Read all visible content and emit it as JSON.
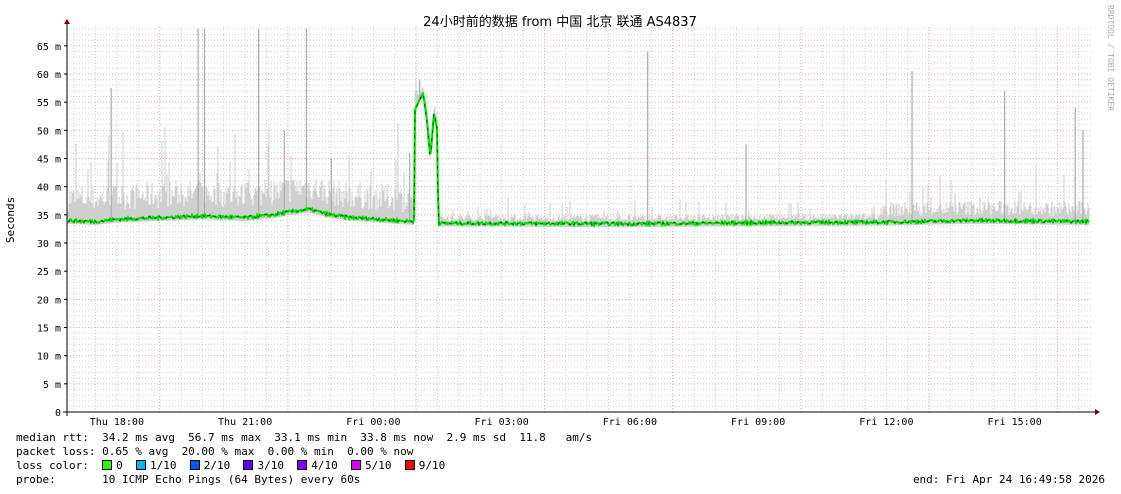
{
  "chart_data": {
    "type": "line",
    "title": "24小时前的数据 from  中国 北京 联通 AS4837",
    "ylabel": "Seconds",
    "ylim": [
      0,
      68.5
    ],
    "yticks": [
      {
        "value": 0,
        "label": "0"
      },
      {
        "value": 5,
        "label": "5 m"
      },
      {
        "value": 10,
        "label": "10 m"
      },
      {
        "value": 15,
        "label": "15 m"
      },
      {
        "value": 20,
        "label": "20 m"
      },
      {
        "value": 25,
        "label": "25 m"
      },
      {
        "value": 30,
        "label": "30 m"
      },
      {
        "value": 35,
        "label": "35 m"
      },
      {
        "value": 40,
        "label": "40 m"
      },
      {
        "value": 45,
        "label": "45 m"
      },
      {
        "value": 50,
        "label": "50 m"
      },
      {
        "value": 55,
        "label": "55 m"
      },
      {
        "value": 60,
        "label": "60 m"
      },
      {
        "value": 65,
        "label": "65 m"
      }
    ],
    "xlim": [
      "Thu 16:50",
      "Fri 16:50"
    ],
    "xticks": [
      {
        "time": "Thu 18:00",
        "label": "Thu 18:00"
      },
      {
        "time": "Thu 21:00",
        "label": "Thu 21:00"
      },
      {
        "time": "Fri 00:00",
        "label": "Fri 00:00"
      },
      {
        "time": "Fri 03:00",
        "label": "Fri 03:00"
      },
      {
        "time": "Fri 06:00",
        "label": "Fri 06:00"
      },
      {
        "time": "Fri 09:00",
        "label": "Fri 09:00"
      },
      {
        "time": "Fri 12:00",
        "label": "Fri 12:00"
      },
      {
        "time": "Fri 15:00",
        "label": "Fri 15:00"
      }
    ],
    "grid": true,
    "series": [
      {
        "name": "median rtt",
        "color": "#00e000",
        "points": [
          [
            "Thu 16:50",
            34.0
          ],
          [
            "Thu 17:30",
            33.8
          ],
          [
            "Thu 18:00",
            34.2
          ],
          [
            "Thu 19:00",
            34.5
          ],
          [
            "Thu 20:00",
            34.8
          ],
          [
            "Thu 21:00",
            34.5
          ],
          [
            "Thu 21:40",
            35.0
          ],
          [
            "Thu 22:00",
            35.5
          ],
          [
            "Thu 22:30",
            36.0
          ],
          [
            "Thu 23:00",
            35.0
          ],
          [
            "Thu 23:30",
            34.5
          ],
          [
            "Fri 00:00",
            34.3
          ],
          [
            "Fri 00:30",
            34.0
          ],
          [
            "Fri 00:57",
            33.8
          ],
          [
            "Fri 00:58",
            53.5
          ],
          [
            "Fri 01:05",
            55.5
          ],
          [
            "Fri 01:10",
            56.5
          ],
          [
            "Fri 01:15",
            52.0
          ],
          [
            "Fri 01:20",
            45.0
          ],
          [
            "Fri 01:25",
            53.0
          ],
          [
            "Fri 01:30",
            50.0
          ],
          [
            "Fri 01:31",
            33.5
          ],
          [
            "Fri 03:00",
            33.5
          ],
          [
            "Fri 06:00",
            33.4
          ],
          [
            "Fri 09:00",
            33.6
          ],
          [
            "Fri 12:00",
            33.7
          ],
          [
            "Fri 14:00",
            34.0
          ],
          [
            "Fri 16:50",
            33.8
          ]
        ]
      },
      {
        "name": "rtt max (smoke)",
        "color": "#b0b0b0",
        "points": [
          [
            "Thu 17:52",
            57.5
          ],
          [
            "Thu 19:54",
            68
          ],
          [
            "Thu 20:03",
            68
          ],
          [
            "Thu 21:19",
            68
          ],
          [
            "Thu 21:55",
            50
          ],
          [
            "Thu 22:26",
            68
          ],
          [
            "Thu 23:01",
            45
          ],
          [
            "Fri 00:51",
            46
          ],
          [
            "Fri 01:05",
            59
          ],
          [
            "Fri 06:25",
            64
          ],
          [
            "Fri 08:43",
            47.5
          ],
          [
            "Fri 12:36",
            60.5
          ],
          [
            "Fri 14:46",
            57
          ],
          [
            "Fri 16:25",
            54
          ],
          [
            "Fri 16:36",
            50
          ]
        ]
      }
    ]
  },
  "watermark": "RRDTOOL / TOBI OETIKER",
  "legend": {
    "median_rtt": "median rtt:  34.2 ms avg  56.7 ms max  33.1 ms min  33.8 ms now  2.9 ms sd  11.8   am/s",
    "packet_loss": "packet loss: 0.65 % avg  20.00 % max  0.00 % min  0.00 % now",
    "loss_color_label": "loss color:  ",
    "loss_colors": [
      {
        "label": "0",
        "color": "#26ff00"
      },
      {
        "label": "1/10",
        "color": "#00b8ff"
      },
      {
        "label": "2/10",
        "color": "#0059ff"
      },
      {
        "label": "3/10",
        "color": "#5e00ff"
      },
      {
        "label": "4/10",
        "color": "#7e00ff"
      },
      {
        "label": "5/10",
        "color": "#dd00ff"
      },
      {
        "label": "9/10",
        "color": "#ff0000"
      }
    ],
    "probe": "probe:       10 ICMP Echo Pings (64 Bytes) every 60s",
    "end": "end: Fri Apr 24 16:49:58 2026"
  }
}
